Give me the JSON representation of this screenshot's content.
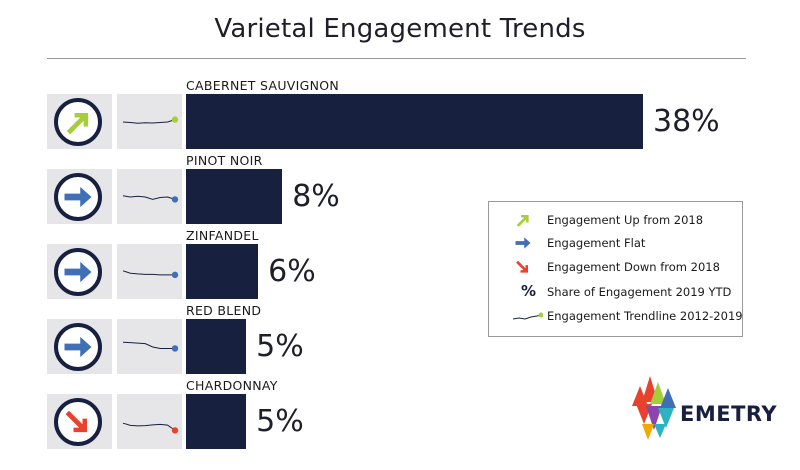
{
  "title": "Varietal Engagement Trends",
  "colors": {
    "navy": "#17203f",
    "up": "#a6ce39",
    "flat": "#3f6fb5",
    "down": "#e8412c",
    "panel": "#e6e6e8"
  },
  "chart_data": {
    "type": "bar",
    "orientation": "horizontal",
    "title": "Varietal Engagement Trends",
    "value_unit": "% Share of Engagement 2019 YTD",
    "categories": [
      "CABERNET SAUVIGNON",
      "PINOT NOIR",
      "ZINFANDEL",
      "RED BLEND",
      "CHARDONNAY"
    ],
    "values": [
      38,
      8,
      6,
      5,
      5
    ],
    "value_labels": [
      "38%",
      "8%",
      "6%",
      "5%",
      "5%"
    ],
    "trend": [
      "up",
      "flat",
      "flat",
      "flat",
      "down"
    ],
    "trend_icons": [
      "arrow-up-right-icon",
      "arrow-right-icon",
      "arrow-right-icon",
      "arrow-right-icon",
      "arrow-down-right-icon"
    ],
    "trendline_range": "2012-2019",
    "trendlines": [
      [
        0.5,
        0.52,
        0.55,
        0.53,
        0.54,
        0.52,
        0.5,
        0.4
      ],
      [
        0.45,
        0.5,
        0.47,
        0.5,
        0.6,
        0.52,
        0.5,
        0.6
      ],
      [
        0.45,
        0.55,
        0.58,
        0.6,
        0.6,
        0.62,
        0.62,
        0.62
      ],
      [
        0.3,
        0.32,
        0.34,
        0.36,
        0.5,
        0.56,
        0.56,
        0.56
      ],
      [
        0.55,
        0.64,
        0.66,
        0.65,
        0.62,
        0.6,
        0.63,
        0.85
      ]
    ],
    "xlim": [
      0,
      38
    ]
  },
  "legend": {
    "items": [
      {
        "icon": "arrow-up-right-icon",
        "label": "Engagement Up from 2018"
      },
      {
        "icon": "arrow-right-icon",
        "label": "Engagement Flat"
      },
      {
        "icon": "arrow-down-right-icon",
        "label": "Engagement Down from 2018"
      },
      {
        "icon": "percent-icon",
        "glyph": "%",
        "label": "Share of Engagement 2019 YTD"
      },
      {
        "icon": "trendline-icon",
        "label": "Engagement Trendline 2012-2019"
      }
    ]
  },
  "logo": {
    "text": "EMETRY"
  }
}
